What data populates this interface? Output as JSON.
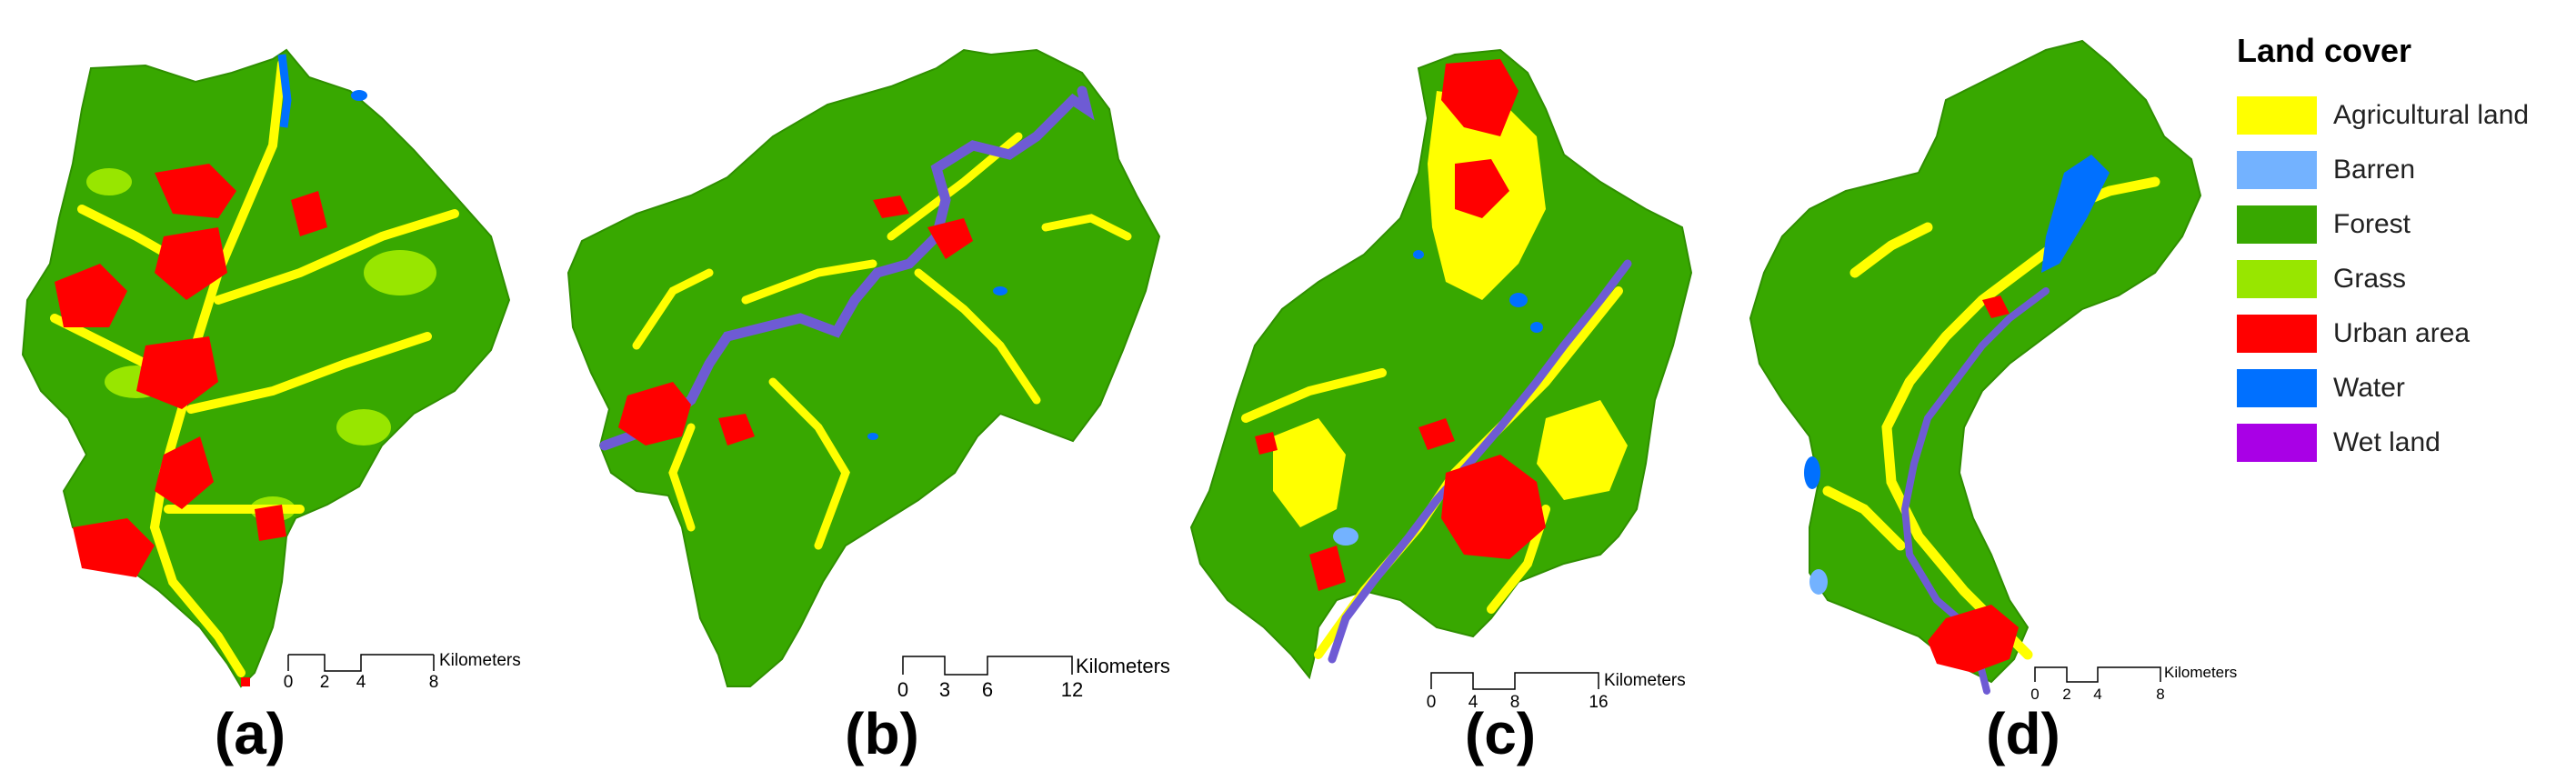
{
  "legend": {
    "title": "Land cover",
    "items": [
      {
        "label": "Agricultural land",
        "color": "#ffff00"
      },
      {
        "label": "Barren",
        "color": "#73b2ff"
      },
      {
        "label": "Forest",
        "color": "#38a800"
      },
      {
        "label": "Grass",
        "color": "#98e600"
      },
      {
        "label": "Urban area",
        "color": "#ff0000"
      },
      {
        "label": "Water",
        "color": "#0070ff"
      },
      {
        "label": "Wet land",
        "color": "#a900e6"
      }
    ]
  },
  "panels": [
    {
      "label": "(a)",
      "scale": {
        "ticks": [
          "0",
          "2",
          "4",
          "8"
        ],
        "unit": "Kilometers"
      }
    },
    {
      "label": "(b)",
      "scale": {
        "ticks": [
          "0",
          "3",
          "6",
          "12"
        ],
        "unit": "Kilometers"
      }
    },
    {
      "label": "(c)",
      "scale": {
        "ticks": [
          "0",
          "4",
          "8",
          "16"
        ],
        "unit": "Kilometers"
      }
    },
    {
      "label": "(d)",
      "scale": {
        "ticks": [
          "0",
          "2",
          "4",
          "8"
        ],
        "unit": "Kilometers"
      }
    }
  ]
}
